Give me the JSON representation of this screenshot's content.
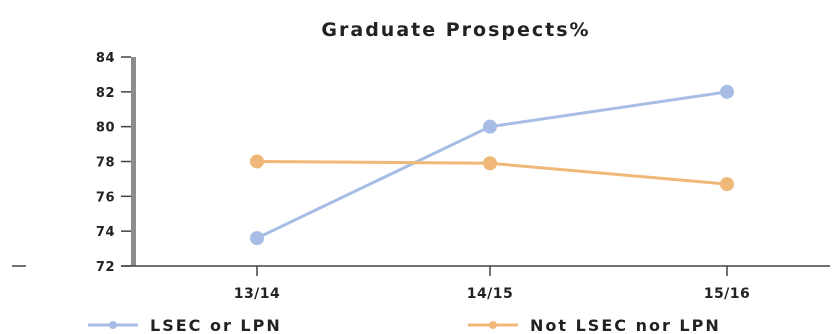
{
  "chart_data": {
    "type": "line",
    "title": "Graduate Prospects%",
    "categories": [
      "13/14",
      "14/15",
      "15/16"
    ],
    "ylim": [
      72,
      84
    ],
    "yticks": [
      72,
      74,
      76,
      78,
      80,
      82,
      84
    ],
    "grid": false,
    "legend_position": "bottom",
    "series": [
      {
        "name": "LSEC or LPN",
        "values": [
          73.6,
          80.0,
          82.0
        ],
        "color": "#a8bde6"
      },
      {
        "name": "Not LSEC nor LPN",
        "values": [
          78.0,
          77.9,
          76.7
        ],
        "color": "#f0b878"
      }
    ]
  }
}
